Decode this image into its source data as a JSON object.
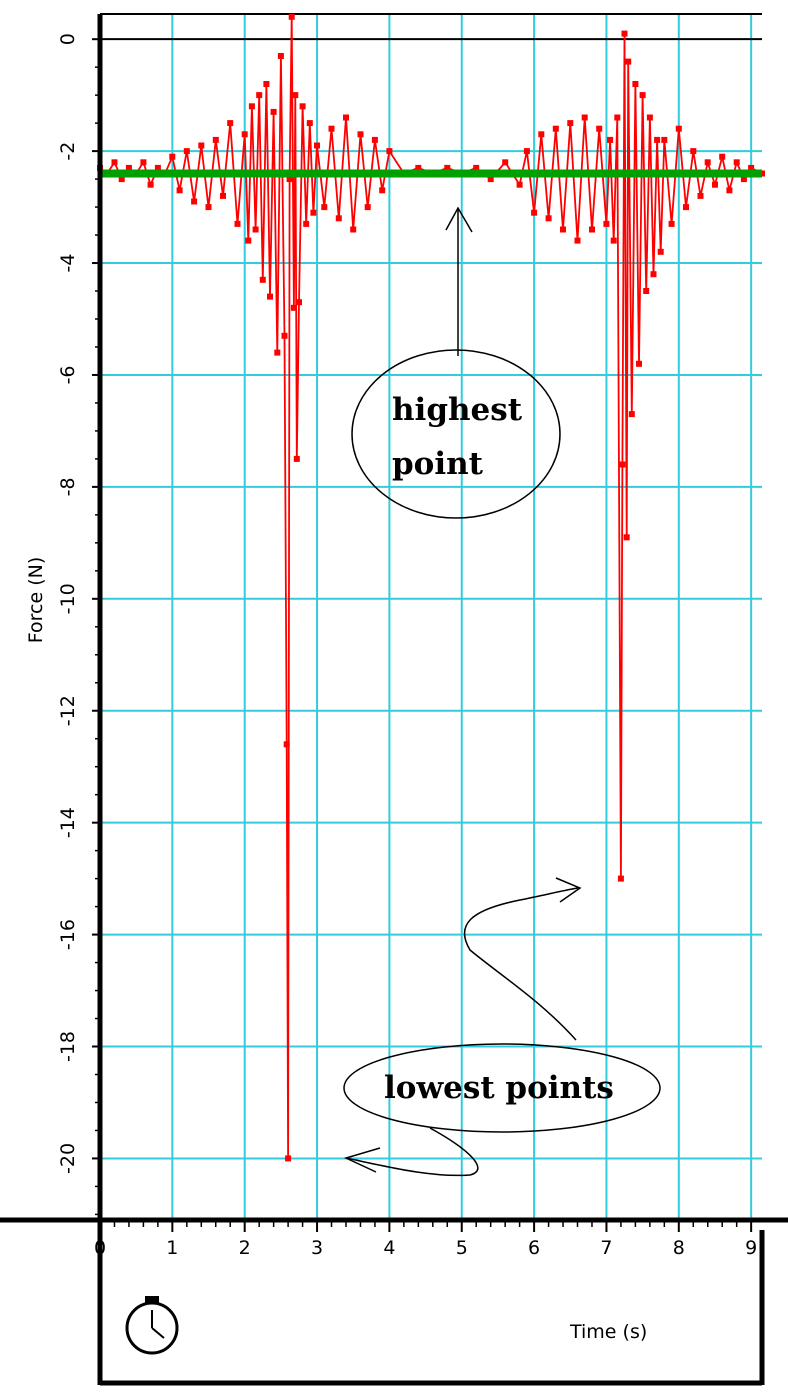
{
  "chart_data": {
    "type": "line",
    "title": "",
    "xlabel": "Time (s)",
    "ylabel": "Force (N)",
    "xlim": [
      0,
      9.15
    ],
    "ylim": [
      -21.1,
      0.45
    ],
    "xticks": [
      0,
      1,
      2,
      3,
      4,
      5,
      6,
      7,
      8,
      9
    ],
    "yticks": [
      0,
      -2,
      -4,
      -6,
      -8,
      -10,
      -12,
      -14,
      -16,
      -18,
      -20
    ],
    "xtick_labels": [
      "0",
      "1",
      "2",
      "3",
      "4",
      "5",
      "6",
      "7",
      "8",
      "9"
    ],
    "ytick_labels": [
      "0",
      "-2",
      "-4",
      "-6",
      "-8",
      "-10",
      "-12",
      "-14",
      "-16",
      "-18",
      "-20"
    ],
    "grid": true,
    "colors": {
      "force_series": "#ff0000",
      "baseline": "#00a000",
      "grid": "#33ccdd",
      "axis": "#000000"
    },
    "series": [
      {
        "name": "",
        "color": "#ff0000",
        "x": [
          0.0,
          0.1,
          0.2,
          0.3,
          0.4,
          0.5,
          0.6,
          0.7,
          0.8,
          0.9,
          1.0,
          1.1,
          1.2,
          1.3,
          1.4,
          1.5,
          1.6,
          1.7,
          1.8,
          1.9,
          2.0,
          2.05,
          2.1,
          2.15,
          2.2,
          2.25,
          2.3,
          2.35,
          2.4,
          2.45,
          2.5,
          2.55,
          2.58,
          2.6,
          2.62,
          2.65,
          2.68,
          2.7,
          2.72,
          2.75,
          2.8,
          2.85,
          2.9,
          2.95,
          3.0,
          3.1,
          3.2,
          3.3,
          3.4,
          3.5,
          3.6,
          3.7,
          3.8,
          3.9,
          4.0,
          4.2,
          4.4,
          4.6,
          4.8,
          5.0,
          5.2,
          5.4,
          5.6,
          5.8,
          5.9,
          6.0,
          6.1,
          6.2,
          6.3,
          6.4,
          6.5,
          6.6,
          6.7,
          6.8,
          6.9,
          7.0,
          7.05,
          7.1,
          7.15,
          7.2,
          7.22,
          7.25,
          7.28,
          7.3,
          7.35,
          7.4,
          7.45,
          7.5,
          7.55,
          7.6,
          7.65,
          7.7,
          7.75,
          7.8,
          7.9,
          8.0,
          8.1,
          8.2,
          8.3,
          8.4,
          8.5,
          8.6,
          8.7,
          8.8,
          8.9,
          9.0,
          9.15
        ],
        "values": [
          -2.3,
          -2.4,
          -2.2,
          -2.5,
          -2.3,
          -2.4,
          -2.2,
          -2.6,
          -2.3,
          -2.4,
          -2.1,
          -2.7,
          -2.0,
          -2.9,
          -1.9,
          -3.0,
          -1.8,
          -2.8,
          -1.5,
          -3.3,
          -1.7,
          -3.6,
          -1.2,
          -3.4,
          -1.0,
          -4.3,
          -0.8,
          -4.6,
          -1.3,
          -5.6,
          -0.3,
          -5.3,
          -12.6,
          -20.0,
          -2.5,
          0.4,
          -4.8,
          -1.0,
          -7.5,
          -4.7,
          -1.2,
          -3.3,
          -1.5,
          -3.1,
          -1.9,
          -3.0,
          -1.6,
          -3.2,
          -1.4,
          -3.4,
          -1.7,
          -3.0,
          -1.8,
          -2.7,
          -2.0,
          -2.4,
          -2.3,
          -2.4,
          -2.3,
          -2.4,
          -2.3,
          -2.5,
          -2.2,
          -2.6,
          -2.0,
          -3.1,
          -1.7,
          -3.2,
          -1.6,
          -3.4,
          -1.5,
          -3.6,
          -1.4,
          -3.4,
          -1.6,
          -3.3,
          -1.8,
          -3.6,
          -1.4,
          -15.0,
          -7.6,
          0.1,
          -8.9,
          -0.4,
          -6.7,
          -0.8,
          -5.8,
          -1.0,
          -4.5,
          -1.4,
          -4.2,
          -1.8,
          -3.8,
          -1.8,
          -3.3,
          -1.6,
          -3.0,
          -2.0,
          -2.8,
          -2.2,
          -2.6,
          -2.1,
          -2.7,
          -2.2,
          -2.5,
          -2.3,
          -2.4
        ]
      },
      {
        "name": "",
        "color": "#00a000",
        "x": [
          0.0,
          9.15
        ],
        "values": [
          -2.4,
          -2.4
        ]
      }
    ],
    "annotations": [
      {
        "text_lines": [
          "highest",
          "point"
        ],
        "target_x": 5.0,
        "target_y": -2.9
      },
      {
        "text_lines": [
          "lowest points"
        ],
        "targets": [
          {
            "x": 6.7,
            "y": -15.1
          },
          {
            "x": 3.35,
            "y": -20.1
          }
        ]
      }
    ]
  },
  "icons": {
    "stopwatch": "stopwatch-icon"
  }
}
